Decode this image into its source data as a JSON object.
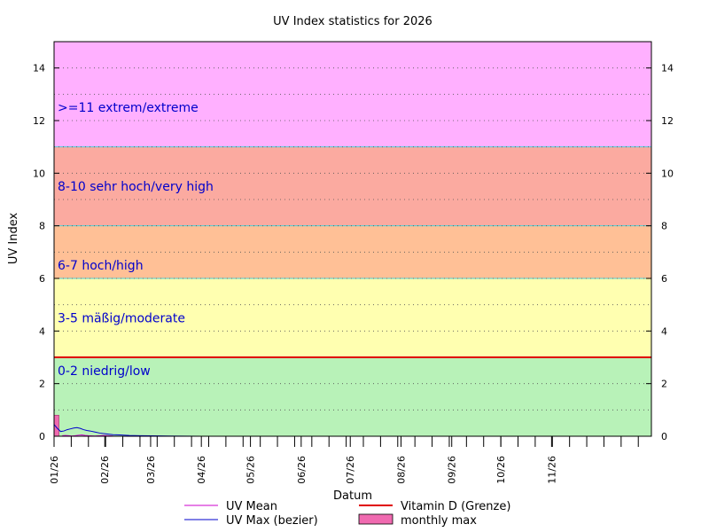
{
  "chart_data": {
    "type": "line",
    "title": "UV Index statistics for 2026",
    "xlabel": "Datum",
    "ylabel": "UV Index",
    "ylim": [
      0,
      15
    ],
    "xlim_days": [
      0,
      365
    ],
    "y_ticks": [
      0,
      2,
      4,
      6,
      8,
      10,
      12,
      14
    ],
    "grid": true,
    "x_ticks": [
      {
        "label": "01/26",
        "day": 0
      },
      {
        "label": "02/26",
        "day": 31
      },
      {
        "label": "03/26",
        "day": 59
      },
      {
        "label": "04/26",
        "day": 90
      },
      {
        "label": "05/26",
        "day": 120
      },
      {
        "label": "06/26",
        "day": 151
      },
      {
        "label": "07/26",
        "day": 181
      },
      {
        "label": "08/26",
        "day": 212
      },
      {
        "label": "09/26",
        "day": 243
      },
      {
        "label": "10/26",
        "day": 273
      },
      {
        "label": "11/26",
        "day": 304
      }
    ],
    "bands": [
      {
        "from": 0,
        "to": 3,
        "color": "#b8f2b8",
        "label": "0-2 niedrig/low",
        "label_y": 2.5
      },
      {
        "from": 3,
        "to": 6,
        "color": "#ffffb0",
        "label": "3-5 mäßig/moderate",
        "label_y": 4.5
      },
      {
        "from": 6,
        "to": 8,
        "color": "#ffc096",
        "label": "6-7 hoch/high",
        "label_y": 6.5
      },
      {
        "from": 8,
        "to": 11,
        "color": "#fbaaa0",
        "label": "8-10 sehr hoch/very high",
        "label_y": 9.5
      },
      {
        "from": 11,
        "to": 15,
        "color": "#ffb0ff",
        "label": ">=11 extrem/extreme",
        "label_y": 12.5
      }
    ],
    "threshold": {
      "name": "Vitamin D (Grenze)",
      "value": 3,
      "color": "#e00000"
    },
    "series": [
      {
        "name": "UV Mean",
        "color": "#cc00cc",
        "x": [
          5,
          7,
          9,
          11,
          13,
          15,
          17,
          19,
          21,
          25,
          28,
          30,
          33,
          36
        ],
        "y": [
          0.02,
          0.03,
          0.02,
          0.01,
          0.02,
          0.04,
          0.05,
          0.03,
          0.02,
          0.01,
          0.02,
          0.03,
          0.02,
          0.01
        ]
      },
      {
        "name": "UV Max (bezier)",
        "color": "#0000cc",
        "x": [
          0,
          2,
          4,
          6,
          8,
          10,
          12,
          14,
          16,
          18,
          20,
          22,
          25,
          28,
          32,
          36,
          40,
          46,
          52,
          60,
          70,
          80,
          90
        ],
        "y": [
          0.45,
          0.3,
          0.18,
          0.2,
          0.25,
          0.28,
          0.31,
          0.33,
          0.3,
          0.25,
          0.22,
          0.2,
          0.16,
          0.12,
          0.09,
          0.06,
          0.05,
          0.03,
          0.02,
          0.015,
          0.01,
          0.005,
          0.0
        ]
      }
    ],
    "monthly_max": {
      "name": "monthly max",
      "color": "#f06ab0",
      "bars": [
        {
          "day_start": 0,
          "day_end": 3,
          "value": 0.8
        }
      ]
    },
    "legend_position": "bottom"
  }
}
